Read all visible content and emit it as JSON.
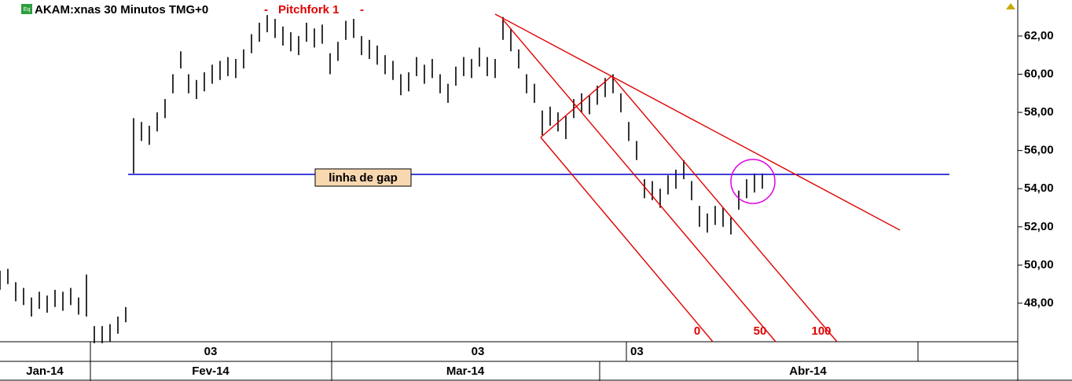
{
  "chart_data": {
    "type": "ohlc",
    "title": "AKAM:xnas 30 Minutos TMG+0",
    "title_separator": "-",
    "study_name": "Pitchfork 1",
    "study_separator": "-",
    "icon_label": "Eq",
    "color": "#000000",
    "x": [
      0,
      1,
      2,
      3,
      4,
      5,
      6,
      7,
      8,
      9,
      10,
      11,
      12,
      13,
      14,
      15,
      16,
      17,
      18,
      19,
      20,
      21,
      22,
      23,
      24,
      25,
      26,
      27,
      28,
      29,
      30,
      31,
      32,
      33,
      34,
      35,
      36,
      37,
      38,
      39,
      40,
      41,
      42,
      43,
      44,
      45,
      46,
      47,
      48,
      49,
      50,
      51,
      52,
      53,
      54,
      55,
      56,
      57,
      58,
      59,
      60,
      61,
      62,
      63,
      64,
      65,
      66,
      67,
      68,
      69,
      70,
      71,
      72,
      73,
      74,
      75,
      76,
      77,
      78,
      79,
      80,
      81,
      82,
      83,
      84,
      85,
      86,
      87,
      88,
      89,
      90,
      91,
      92,
      93,
      94,
      95,
      96,
      97
    ],
    "high": [
      49.7,
      49.8,
      49.1,
      48.8,
      48.3,
      48.6,
      48.4,
      48.7,
      48.6,
      48.8,
      48.3,
      49.5,
      46.8,
      46.8,
      46.9,
      47.3,
      47.8,
      57.7,
      57.5,
      57.3,
      58.0,
      58.7,
      60.0,
      61.2,
      60.0,
      59.7,
      60.1,
      60.5,
      60.7,
      60.9,
      60.8,
      61.3,
      62.1,
      62.7,
      63.1,
      62.9,
      62.5,
      62.2,
      62.0,
      62.7,
      62.4,
      62.6,
      61.1,
      61.7,
      62.8,
      62.9,
      62.0,
      61.8,
      61.5,
      61.0,
      60.7,
      60.0,
      60.1,
      60.9,
      60.5,
      60.8,
      60.0,
      59.5,
      60.4,
      60.9,
      60.8,
      61.4,
      60.9,
      60.8,
      63.0,
      62.4,
      61.3,
      60.0,
      59.5,
      58.1,
      58.3,
      58.0,
      57.8,
      58.7,
      59.0,
      58.9,
      59.4,
      59.8,
      60.0,
      59.0,
      57.5,
      56.5,
      54.5,
      54.4,
      54.0,
      54.7,
      55.0,
      55.5,
      54.4,
      53.1,
      52.7,
      53.1,
      53.0,
      52.5,
      53.9,
      54.5,
      54.8,
      54.8
    ],
    "low": [
      48.7,
      49.0,
      48.1,
      47.9,
      47.3,
      47.7,
      47.5,
      47.8,
      47.6,
      47.9,
      47.4,
      47.3,
      45.9,
      45.9,
      46.0,
      46.4,
      47.0,
      54.8,
      56.5,
      56.3,
      57.0,
      57.7,
      59.0,
      60.3,
      59.0,
      58.7,
      59.1,
      59.5,
      59.7,
      59.9,
      59.8,
      60.3,
      61.1,
      61.7,
      62.2,
      61.9,
      61.5,
      61.2,
      61.0,
      61.7,
      61.4,
      61.6,
      60.0,
      60.7,
      61.8,
      61.9,
      61.0,
      60.8,
      60.5,
      60.0,
      59.7,
      58.9,
      59.1,
      59.9,
      59.5,
      59.8,
      59.0,
      58.5,
      59.4,
      59.9,
      59.8,
      60.4,
      59.9,
      59.8,
      61.8,
      61.2,
      60.3,
      59.0,
      58.5,
      56.8,
      57.3,
      57.0,
      56.6,
      57.7,
      58.0,
      57.9,
      58.4,
      58.8,
      59.0,
      58.0,
      56.5,
      55.5,
      53.5,
      53.4,
      53.0,
      53.7,
      54.0,
      54.5,
      53.4,
      52.0,
      51.7,
      52.1,
      52.0,
      51.6,
      52.9,
      53.5,
      53.8,
      54.0
    ],
    "xlim": [
      0,
      129.5
    ],
    "ylim": [
      45.98,
      63.89
    ],
    "yticks": [
      {
        "value": 48,
        "label": "48,00"
      },
      {
        "value": 50,
        "label": "50,00"
      },
      {
        "value": 52,
        "label": "52,00"
      },
      {
        "value": 54,
        "label": "54,00"
      },
      {
        "value": 56,
        "label": "56,00"
      },
      {
        "value": 58,
        "label": "58,00"
      },
      {
        "value": 60,
        "label": "60,00"
      },
      {
        "value": 62,
        "label": "62,00"
      }
    ],
    "time_axis_days": [
      "03",
      "03",
      "03"
    ],
    "time_axis_months": [
      "Jan-14",
      "Fev-14",
      "Mar-14",
      "Abr-14"
    ],
    "gap_line": {
      "label": "linha de gap",
      "value": 54.75,
      "x": [
        16.3,
        120.8
      ],
      "color": "#0000cc"
    },
    "pitchfork": {
      "color": "#e00000",
      "lines": [
        [
          63,
          63.15,
          114.5,
          51.83
        ],
        [
          68.8,
          56.69,
          77.8,
          59.9
        ],
        [
          68.8,
          56.69,
          90.7,
          45.98
        ],
        [
          64,
          62.86,
          98.7,
          45.98
        ],
        [
          77.8,
          59.9,
          106.5,
          45.98
        ]
      ],
      "levels": [
        0,
        50,
        100
      ]
    },
    "highlight": {
      "x": 95.8,
      "y": 54.38,
      "color": "#e000e0"
    }
  }
}
